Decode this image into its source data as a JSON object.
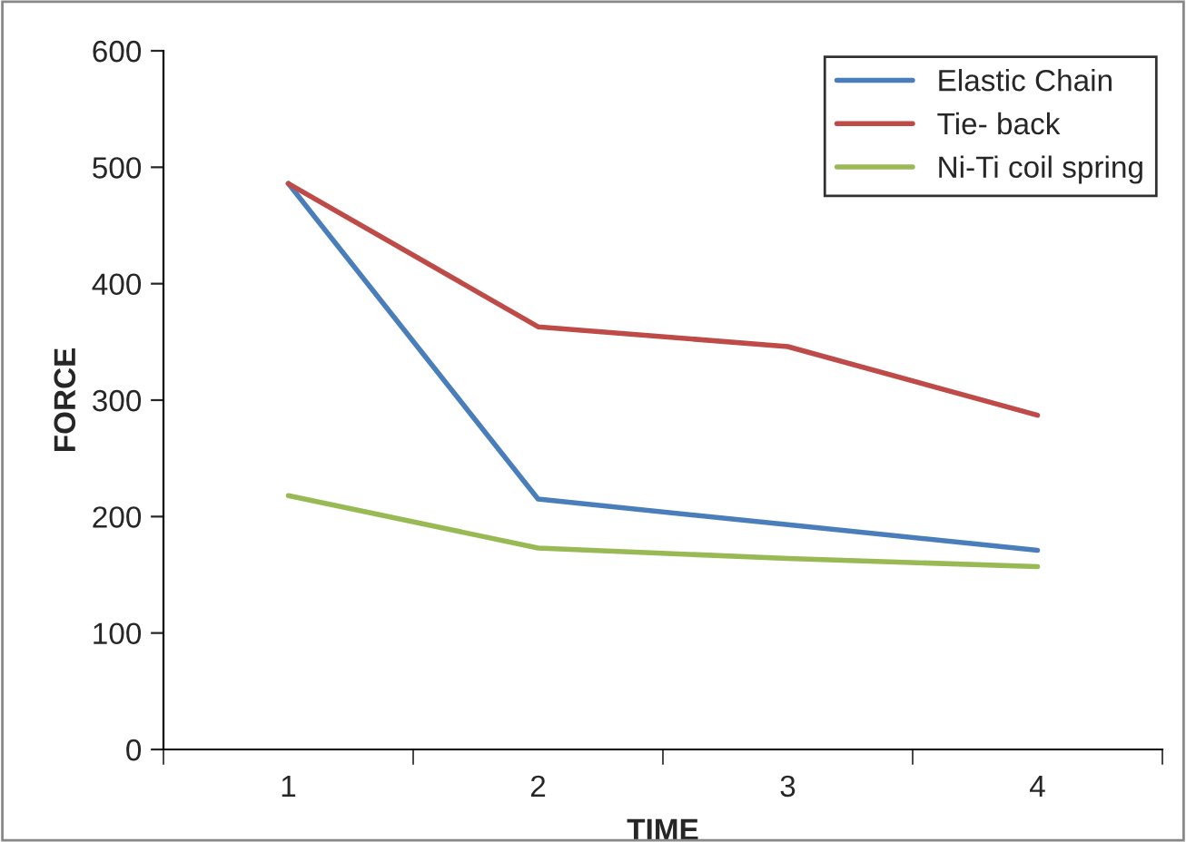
{
  "chart_data": {
    "type": "line",
    "xlabel": "TIME",
    "ylabel": "FORCE",
    "categories": [
      "1",
      "2",
      "3",
      "4"
    ],
    "series": [
      {
        "name": "Elastic Chain",
        "color": "#4a7ebb",
        "values": [
          486,
          215,
          193,
          171
        ]
      },
      {
        "name": "Tie- back",
        "color": "#be4b48",
        "values": [
          486,
          363,
          346,
          287
        ]
      },
      {
        "name": "Ni-Ti coil spring",
        "color": "#98b954",
        "values": [
          218,
          173,
          164,
          157
        ]
      }
    ],
    "ylim": [
      0,
      600
    ],
    "yticks": [
      0,
      100,
      200,
      300,
      400,
      500,
      600
    ],
    "grid": false,
    "legend": "top right",
    "marker": "none",
    "line_style": "solid"
  }
}
